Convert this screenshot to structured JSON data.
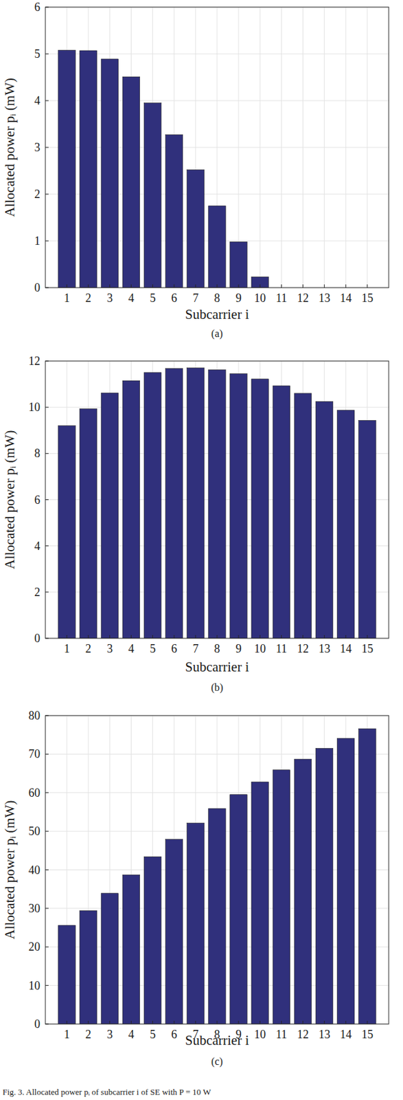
{
  "chart_data": [
    {
      "type": "bar",
      "label": "(a)",
      "xlabel": "Subcarrier i",
      "ylabel": "Allocated power pᵢ (mW)",
      "categories": [
        "1",
        "2",
        "3",
        "4",
        "5",
        "6",
        "7",
        "8",
        "9",
        "10",
        "11",
        "12",
        "13",
        "14",
        "15"
      ],
      "values": [
        5.08,
        5.07,
        4.89,
        4.51,
        3.95,
        3.27,
        2.52,
        1.75,
        0.98,
        0.23,
        0,
        0,
        0,
        0,
        0
      ],
      "color": "#30307c",
      "ylim": [
        0,
        6
      ],
      "yticks": [
        0,
        1,
        2,
        3,
        4,
        5,
        6
      ],
      "grid": true
    },
    {
      "type": "bar",
      "label": "(b)",
      "xlabel": "Subcarrier i",
      "ylabel": "Allocated power pᵢ (mW)",
      "categories": [
        "1",
        "2",
        "3",
        "4",
        "5",
        "6",
        "7",
        "8",
        "9",
        "10",
        "11",
        "12",
        "13",
        "14",
        "15"
      ],
      "values": [
        9.2,
        9.93,
        10.62,
        11.15,
        11.5,
        11.68,
        11.7,
        11.62,
        11.45,
        11.22,
        10.93,
        10.6,
        10.25,
        9.87,
        9.43
      ],
      "color": "#30307c",
      "ylim": [
        0,
        12
      ],
      "yticks": [
        0,
        2,
        4,
        6,
        8,
        10,
        12
      ],
      "grid": true
    },
    {
      "type": "bar",
      "label": "(c)",
      "xlabel": "Subcarrier i",
      "ylabel": "Allocated power pᵢ (mW)",
      "categories": [
        "1",
        "2",
        "3",
        "4",
        "5",
        "6",
        "7",
        "8",
        "9",
        "10",
        "11",
        "12",
        "13",
        "14",
        "15"
      ],
      "values": [
        25.6,
        29.4,
        33.9,
        38.7,
        43.4,
        47.9,
        52.1,
        55.9,
        59.5,
        62.8,
        65.9,
        68.7,
        71.5,
        74.1,
        76.6
      ],
      "color": "#30307c",
      "ylim": [
        0,
        80
      ],
      "yticks": [
        0,
        10,
        20,
        30,
        40,
        50,
        60,
        70,
        80
      ],
      "grid": true
    }
  ],
  "caption": "Fig. 3. Allocated power pᵢ of subcarrier i of SE with P = 10 W"
}
